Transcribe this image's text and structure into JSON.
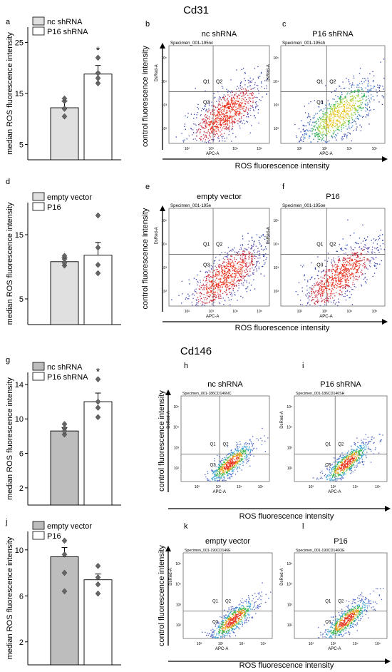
{
  "sections": [
    {
      "title": "Cd31"
    },
    {
      "title": "Cd146"
    }
  ],
  "shared": {
    "bar_ylabel": "median ROS fluorescence intensity",
    "flow_ylabel": "control fluorescence intensity",
    "flow_xlabel": "ROS fluorescence intensity",
    "flow_x_axis": "APC-A",
    "flow_y_axis": "DsRed-A",
    "quadrants": [
      "Q1",
      "Q2",
      "Q3"
    ],
    "flow_ticks": [
      "10²",
      "10³",
      "10⁴",
      "10⁵"
    ],
    "sig_marker": "*"
  },
  "chart_data": [
    {
      "panel": "a",
      "type": "bar",
      "categories": [
        "nc shRNA",
        "P16 shRNA"
      ],
      "values": [
        12.2,
        18.8
      ],
      "errors": [
        1.3,
        1.7
      ],
      "points": [
        [
          12,
          13.5,
          10.5,
          14
        ],
        [
          22,
          18,
          19,
          17
        ]
      ],
      "fills": [
        "#e0e0e0",
        "#ffffff"
      ],
      "ylim": [
        2,
        28
      ],
      "yticks": [
        5,
        15,
        25
      ],
      "significant": [
        false,
        true
      ],
      "ylabel": "median ROS fluorescence intensity"
    },
    {
      "panel": "d",
      "type": "bar",
      "categories": [
        "empty vector",
        "P16"
      ],
      "values": [
        10.8,
        11.8
      ],
      "errors": [
        0.6,
        2.0
      ],
      "points": [
        [
          10.2,
          11.2,
          11.7,
          10.6
        ],
        [
          18,
          13,
          10.3,
          9
        ]
      ],
      "fills": [
        "#e0e0e0",
        "#ffffff"
      ],
      "ylim": [
        1,
        20
      ],
      "yticks": [
        5,
        15
      ],
      "significant": [
        false,
        false
      ],
      "ylabel": "median ROS fluorescence intensity"
    },
    {
      "panel": "g",
      "type": "bar",
      "categories": [
        "nc shRNA",
        "P16 shRNA"
      ],
      "values": [
        8.6,
        12.0
      ],
      "errors": [
        0.4,
        1.0
      ],
      "points": [
        [
          8.2,
          8.9,
          9.4,
          8.6
        ],
        [
          14.6,
          12.0,
          11.3,
          10.2
        ]
      ],
      "fills": [
        "#bdbdbd",
        "#ffffff"
      ],
      "ylim": [
        0,
        15.4
      ],
      "yticks": [
        2,
        6,
        10,
        14
      ],
      "significant": [
        false,
        true
      ],
      "ylabel": "median ROS fluorescence intensity"
    },
    {
      "panel": "j",
      "type": "bar",
      "categories": [
        "empty vector",
        "P16"
      ],
      "values": [
        9.4,
        7.4
      ],
      "errors": [
        0.8,
        0.5
      ],
      "points": [
        [
          10.8,
          9.6,
          8.0,
          6.4
        ],
        [
          8.6,
          7.6,
          7.0,
          6.2
        ]
      ],
      "fills": [
        "#bdbdbd",
        "#ffffff"
      ],
      "ylim": [
        0,
        11.6
      ],
      "yticks": [
        2,
        6,
        10
      ],
      "significant": [
        false,
        false
      ],
      "ylabel": "median ROS fluorescence intensity"
    },
    {
      "panel": "b",
      "type": "scatter",
      "title": "nc shRNA",
      "specimen": "Specimen_001-195nc",
      "xlabel": "APC-A",
      "ylabel": "DsRed-A",
      "quadrants": [
        "Q1",
        "Q2",
        "Q3"
      ],
      "palette": "red"
    },
    {
      "panel": "c",
      "type": "scatter",
      "title": "P16 shRNA",
      "specimen": "Specimen_001-195sh",
      "xlabel": "APC-A",
      "ylabel": "DsRed-A",
      "quadrants": [
        "Q1",
        "Q2",
        "Q3"
      ],
      "palette": "green"
    },
    {
      "panel": "e",
      "type": "scatter",
      "title": "empty vector",
      "specimen": "Specimen_001-195e",
      "xlabel": "APC-A",
      "ylabel": "DsRed-A",
      "quadrants": [
        "Q1",
        "Q2",
        "Q3"
      ],
      "palette": "red"
    },
    {
      "panel": "f",
      "type": "scatter",
      "title": "P16",
      "specimen": "Specimen_001-195oe",
      "xlabel": "APC-A",
      "ylabel": "DsRed-A",
      "quadrants": [
        "Q1",
        "Q2",
        "Q3"
      ],
      "palette": "red"
    },
    {
      "panel": "h",
      "type": "scatter",
      "title": "nc shRNA",
      "specimen": "Specimen_001-186CD146NC",
      "xlabel": "APC-A",
      "ylabel": "DsRed-A",
      "quadrants": [
        "Q1",
        "Q2",
        "Q3"
      ],
      "palette": "light"
    },
    {
      "panel": "i",
      "type": "scatter",
      "title": "P16 shRNA",
      "specimen": "Specimen_001-186CD146SH",
      "xlabel": "APC-A",
      "ylabel": "DsRed-A",
      "quadrants": [
        "Q1",
        "Q2",
        "Q3"
      ],
      "palette": "light"
    },
    {
      "panel": "k",
      "type": "scatter",
      "title": "empty vector",
      "specimen": "Specimen_001-190CD146E",
      "xlabel": "APC-A",
      "ylabel": "DsRed-A",
      "quadrants": [
        "Q1",
        "Q2",
        "Q3"
      ],
      "palette": "light"
    },
    {
      "panel": "l",
      "type": "scatter",
      "title": "P16",
      "specimen": "Specimen_001-190CD146OE",
      "xlabel": "APC-A",
      "ylabel": "DsRed-A",
      "quadrants": [
        "Q1",
        "Q2",
        "Q3"
      ],
      "palette": "light"
    }
  ]
}
